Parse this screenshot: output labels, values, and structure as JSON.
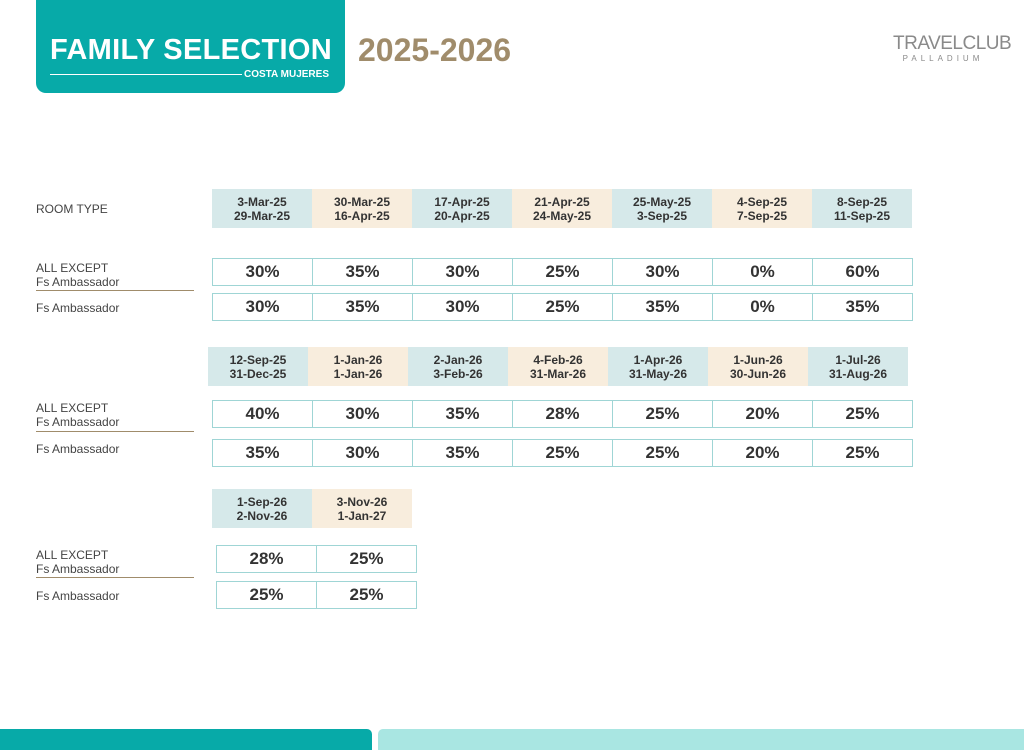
{
  "header": {
    "title": "FAMILY SELECTION",
    "subtitle": "COSTA MUJERES",
    "year": "2025-2026",
    "logo_main": "TRAVELCLUB",
    "logo_sub": "PALLADIUM"
  },
  "room_type_label": "ROOM TYPE",
  "row_labels": {
    "all_except_1": "ALL EXCEPT",
    "all_except_2": "Fs Ambassador",
    "fs_ambassador": "Fs Ambassador"
  },
  "blocks": [
    {
      "periods": [
        {
          "from": "3-Mar-25",
          "to": "29-Mar-25"
        },
        {
          "from": "30-Mar-25",
          "to": "16-Apr-25"
        },
        {
          "from": "17-Apr-25",
          "to": "20-Apr-25"
        },
        {
          "from": "21-Apr-25",
          "to": "24-May-25"
        },
        {
          "from": "25-May-25",
          "to": "3-Sep-25"
        },
        {
          "from": "4-Sep-25",
          "to": "7-Sep-25"
        },
        {
          "from": "8-Sep-25",
          "to": "11-Sep-25"
        }
      ],
      "all_except": [
        "30%",
        "35%",
        "30%",
        "25%",
        "30%",
        "0%",
        "60%"
      ],
      "fs_ambassador": [
        "30%",
        "35%",
        "30%",
        "25%",
        "35%",
        "0%",
        "35%"
      ]
    },
    {
      "periods": [
        {
          "from": "12-Sep-25",
          "to": "31-Dec-25"
        },
        {
          "from": "1-Jan-26",
          "to": "1-Jan-26"
        },
        {
          "from": "2-Jan-26",
          "to": "3-Feb-26"
        },
        {
          "from": "4-Feb-26",
          "to": "31-Mar-26"
        },
        {
          "from": "1-Apr-26",
          "to": "31-May-26"
        },
        {
          "from": "1-Jun-26",
          "to": "30-Jun-26"
        },
        {
          "from": "1-Jul-26",
          "to": "31-Aug-26"
        }
      ],
      "all_except": [
        "40%",
        "30%",
        "35%",
        "28%",
        "25%",
        "20%",
        "25%"
      ],
      "fs_ambassador": [
        "35%",
        "30%",
        "35%",
        "25%",
        "25%",
        "20%",
        "25%"
      ]
    },
    {
      "periods": [
        {
          "from": "1-Sep-26",
          "to": "2-Nov-26"
        },
        {
          "from": "3-Nov-26",
          "to": "1-Jan-27"
        }
      ],
      "all_except": [
        "28%",
        "25%"
      ],
      "fs_ambassador": [
        "25%",
        "25%"
      ]
    }
  ]
}
